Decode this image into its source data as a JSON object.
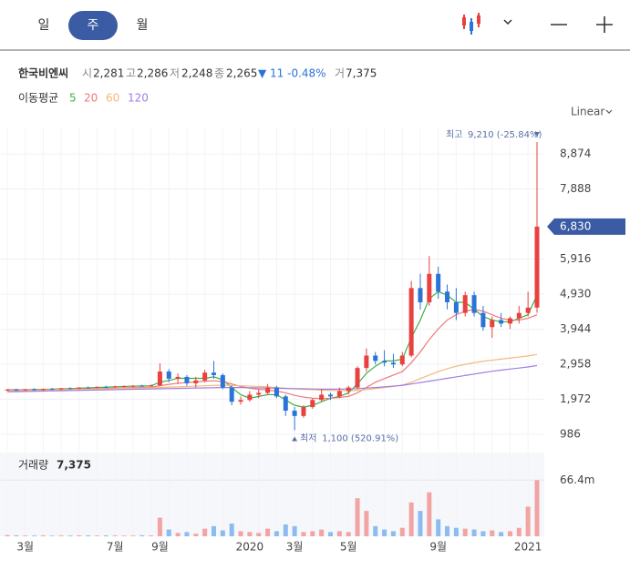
{
  "tabs": [
    "일",
    "주",
    "월"
  ],
  "stock": {
    "name": "한국비엔씨",
    "open_label": "시",
    "open": "2,281",
    "high_label": "고",
    "high": "2,286",
    "low_label": "저",
    "low": "2,248",
    "close_label": "종",
    "close": "2,265",
    "change": "▼ 11 -0.48%",
    "volume_label": "거",
    "volume": "7,375"
  },
  "ma_title": "이동평균",
  "scale": "Linear",
  "chart_data": {
    "type": "candlestick",
    "categories": [
      null,
      null,
      "3월",
      null,
      null,
      null,
      null,
      null,
      null,
      null,
      null,
      null,
      "7월",
      null,
      null,
      null,
      null,
      "9월",
      null,
      null,
      null,
      null,
      null,
      null,
      null,
      null,
      null,
      "2020",
      null,
      null,
      null,
      null,
      "3월",
      null,
      null,
      null,
      null,
      null,
      "5월",
      null,
      null,
      null,
      null,
      null,
      null,
      null,
      null,
      null,
      "9월",
      null,
      null,
      null,
      null,
      null,
      null,
      null,
      null,
      null,
      "2021",
      null
    ],
    "ohlc": [
      [
        2230,
        2260,
        2200,
        2240
      ],
      [
        2240,
        2270,
        2210,
        2230
      ],
      [
        2230,
        2260,
        2200,
        2250
      ],
      [
        2250,
        2280,
        2220,
        2240
      ],
      [
        2240,
        2270,
        2210,
        2260
      ],
      [
        2260,
        2290,
        2230,
        2250
      ],
      [
        2250,
        2290,
        2230,
        2280
      ],
      [
        2280,
        2310,
        2250,
        2270
      ],
      [
        2270,
        2310,
        2250,
        2300
      ],
      [
        2300,
        2330,
        2270,
        2290
      ],
      [
        2290,
        2330,
        2270,
        2320
      ],
      [
        2320,
        2350,
        2290,
        2310
      ],
      [
        2310,
        2350,
        2290,
        2330
      ],
      [
        2330,
        2360,
        2300,
        2340
      ],
      [
        2340,
        2370,
        2310,
        2350
      ],
      [
        2350,
        2380,
        2320,
        2340
      ],
      [
        2340,
        2380,
        2320,
        2360
      ],
      [
        2360,
        2980,
        2340,
        2750
      ],
      [
        2750,
        2820,
        2450,
        2550
      ],
      [
        2550,
        2700,
        2400,
        2600
      ],
      [
        2600,
        2650,
        2350,
        2420
      ],
      [
        2420,
        2600,
        2300,
        2500
      ],
      [
        2500,
        2800,
        2450,
        2720
      ],
      [
        2720,
        3050,
        2550,
        2650
      ],
      [
        2650,
        2700,
        2250,
        2300
      ],
      [
        2300,
        2350,
        1800,
        1900
      ],
      [
        1900,
        2050,
        1820,
        1950
      ],
      [
        1950,
        2200,
        1900,
        2100
      ],
      [
        2100,
        2250,
        2000,
        2150
      ],
      [
        2150,
        2400,
        2100,
        2300
      ],
      [
        2300,
        2350,
        2000,
        2050
      ],
      [
        2050,
        2100,
        1500,
        1650
      ],
      [
        1650,
        1750,
        1100,
        1500
      ],
      [
        1500,
        1800,
        1450,
        1750
      ],
      [
        1750,
        2000,
        1700,
        1950
      ],
      [
        1950,
        2250,
        1900,
        2100
      ],
      [
        2100,
        2150,
        1950,
        2050
      ],
      [
        2050,
        2300,
        2000,
        2200
      ],
      [
        2200,
        2350,
        2100,
        2300
      ],
      [
        2300,
        2900,
        2250,
        2850
      ],
      [
        2850,
        3400,
        2750,
        3200
      ],
      [
        3200,
        3300,
        2950,
        3050
      ],
      [
        3050,
        3350,
        2900,
        3000
      ],
      [
        3000,
        3250,
        2850,
        2950
      ],
      [
        2950,
        3300,
        2900,
        3200
      ],
      [
        3200,
        5300,
        3150,
        5100
      ],
      [
        5100,
        5500,
        4500,
        4700
      ],
      [
        4700,
        6000,
        4600,
        5500
      ],
      [
        5500,
        5700,
        4800,
        5000
      ],
      [
        5000,
        5200,
        4500,
        4700
      ],
      [
        4700,
        5100,
        4200,
        4400
      ],
      [
        4400,
        5000,
        4300,
        4900
      ],
      [
        4900,
        5000,
        4300,
        4400
      ],
      [
        4400,
        4600,
        3900,
        4000
      ],
      [
        4000,
        4300,
        3700,
        4200
      ],
      [
        4200,
        4400,
        4000,
        4100
      ],
      [
        4100,
        4300,
        3950,
        4250
      ],
      [
        4250,
        4600,
        4100,
        4400
      ],
      [
        4400,
        5000,
        4300,
        4550
      ],
      [
        4550,
        9210,
        4400,
        6830
      ]
    ],
    "up_color": "#e8413f",
    "down_color": "#2a73d9",
    "ylim": [
      650,
      9620
    ],
    "yticks": [
      {
        "value": 986,
        "label": "986"
      },
      {
        "value": 1972,
        "label": "1,972"
      },
      {
        "value": 2958,
        "label": "2,958"
      },
      {
        "value": 3944,
        "label": "3,944"
      },
      {
        "value": 4930,
        "label": "4,930"
      },
      {
        "value": 5916,
        "label": "5,916"
      },
      {
        "value": 7888,
        "label": "7,888"
      },
      {
        "value": 8874,
        "label": "8,874"
      }
    ],
    "grid": true,
    "moving_averages": [
      {
        "name": "5",
        "color": "#3cb043",
        "values": [
          2240,
          2240,
          2240,
          2245,
          2250,
          2255,
          2265,
          2270,
          2280,
          2290,
          2300,
          2310,
          2320,
          2330,
          2340,
          2345,
          2350,
          2450,
          2500,
          2560,
          2560,
          2560,
          2560,
          2600,
          2520,
          2300,
          2100,
          2000,
          2050,
          2100,
          2100,
          1950,
          1800,
          1750,
          1800,
          1900,
          2000,
          2050,
          2150,
          2400,
          2700,
          2900,
          3050,
          3050,
          3100,
          3700,
          4200,
          4800,
          5000,
          4900,
          4700,
          4700,
          4500,
          4300,
          4200,
          4150,
          4150,
          4250,
          4350,
          4900
        ]
      },
      {
        "name": "20",
        "color": "#f07878",
        "values": [
          2230,
          2232,
          2235,
          2238,
          2240,
          2245,
          2250,
          2255,
          2260,
          2265,
          2270,
          2275,
          2280,
          2290,
          2300,
          2305,
          2310,
          2350,
          2390,
          2420,
          2440,
          2460,
          2480,
          2490,
          2470,
          2400,
          2330,
          2280,
          2250,
          2230,
          2200,
          2150,
          2080,
          2030,
          2000,
          1990,
          2000,
          2020,
          2050,
          2150,
          2300,
          2450,
          2550,
          2650,
          2750,
          3000,
          3300,
          3650,
          3950,
          4200,
          4350,
          4450,
          4500,
          4450,
          4350,
          4250,
          4200,
          4200,
          4250,
          4350
        ]
      },
      {
        "name": "60",
        "color": "#f5b77a",
        "values": [
          2210,
          2215,
          2220,
          2225,
          2230,
          2235,
          2240,
          2245,
          2250,
          2255,
          2260,
          2265,
          2270,
          2275,
          2280,
          2285,
          2290,
          2300,
          2310,
          2320,
          2330,
          2340,
          2350,
          2360,
          2365,
          2360,
          2350,
          2340,
          2330,
          2320,
          2300,
          2280,
          2260,
          2250,
          2240,
          2230,
          2220,
          2215,
          2210,
          2220,
          2240,
          2270,
          2300,
          2330,
          2370,
          2450,
          2550,
          2650,
          2750,
          2830,
          2900,
          2950,
          3000,
          3040,
          3070,
          3100,
          3130,
          3160,
          3190,
          3230
        ]
      },
      {
        "name": "120",
        "color": "#a07de0",
        "values": [
          2180,
          2185,
          2190,
          2195,
          2200,
          2205,
          2210,
          2215,
          2220,
          2225,
          2230,
          2235,
          2240,
          2245,
          2250,
          2255,
          2260,
          2265,
          2270,
          2275,
          2280,
          2285,
          2290,
          2295,
          2300,
          2300,
          2300,
          2295,
          2290,
          2285,
          2280,
          2275,
          2270,
          2265,
          2260,
          2255,
          2255,
          2255,
          2260,
          2270,
          2285,
          2300,
          2320,
          2340,
          2360,
          2400,
          2440,
          2480,
          2520,
          2560,
          2600,
          2640,
          2680,
          2720,
          2760,
          2790,
          2820,
          2850,
          2880,
          2920
        ]
      }
    ],
    "last_price": {
      "value": 6830,
      "label": "6,830"
    },
    "high_annotation": {
      "label": "최고",
      "text": "9,210 (-25.84%)"
    },
    "low_annotation": {
      "label": "최저",
      "text": "1,100 (520.91%)"
    },
    "volume": {
      "title": "거래량",
      "value_text": "7,375",
      "values": [
        1500000,
        1200000,
        1000000,
        900000,
        1100000,
        800000,
        1000000,
        900000,
        1200000,
        1000000,
        900000,
        1100000,
        1000000,
        800000,
        900000,
        1200000,
        1000000,
        22000000,
        8000000,
        4000000,
        5000000,
        3000000,
        9000000,
        12000000,
        7000000,
        15000000,
        6000000,
        5000000,
        4000000,
        9000000,
        6000000,
        14000000,
        12000000,
        5000000,
        6000000,
        8000000,
        5000000,
        6000000,
        5000000,
        45000000,
        30000000,
        12000000,
        8000000,
        6000000,
        10000000,
        40000000,
        30000000,
        52000000,
        20000000,
        12000000,
        10000000,
        9000000,
        8000000,
        6000000,
        7000000,
        5000000,
        6000000,
        10000000,
        35000000,
        66400000
      ],
      "up_color": "#f2a3a3",
      "down_color": "#8cbbef",
      "ylim": [
        0,
        99000000
      ],
      "yticks": [
        {
          "value": 66400000,
          "label": "66.4m"
        }
      ]
    }
  }
}
